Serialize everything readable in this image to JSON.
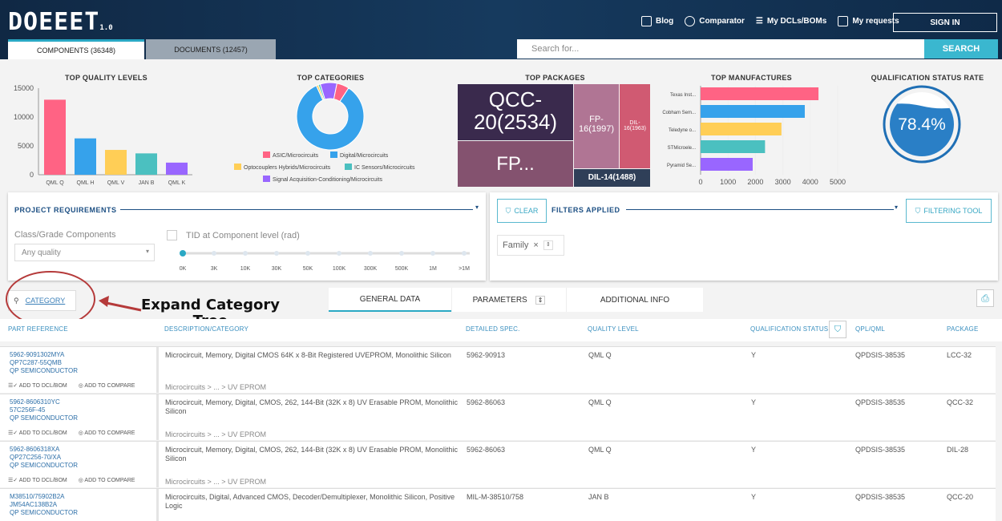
{
  "header": {
    "logo": "DOEEET",
    "version": "1.0",
    "nav": [
      {
        "label": "Blog",
        "icon": "blog-icon"
      },
      {
        "label": "Comparator",
        "icon": "compare-icon"
      },
      {
        "label": "My DCLs/BOMs",
        "icon": "list-icon"
      },
      {
        "label": "My requests",
        "icon": "document-icon"
      }
    ],
    "signin": "SIGN IN",
    "tabs": [
      {
        "label": "COMPONENTS (36348)",
        "active": true
      },
      {
        "label": "DOCUMENTS (12457)",
        "active": false
      }
    ],
    "search_placeholder": "Search for...",
    "search_button": "SEARCH"
  },
  "charts": {
    "quality": {
      "title": "TOP QUALITY LEVELS",
      "yticks": [
        "15000",
        "10000",
        "5000",
        "0"
      ]
    },
    "categories": {
      "title": "TOP CATEGORIES"
    },
    "packages": {
      "title": "TOP PACKAGES"
    },
    "manufactures": {
      "title": "TOP MANUFACTURES",
      "xticks": [
        "0",
        "1000",
        "2000",
        "3000",
        "4000",
        "5000"
      ]
    },
    "qualification": {
      "title": "QUALIFICATION STATUS RATE",
      "value": "78.4%",
      "fraction": 0.784
    }
  },
  "chart_data": [
    {
      "type": "bar",
      "title": "TOP QUALITY LEVELS",
      "categories": [
        "QML Q",
        "QML H",
        "QML V",
        "JAN B",
        "QML K"
      ],
      "values": [
        13000,
        6300,
        4300,
        3700,
        2100
      ],
      "ylim": [
        0,
        15000
      ],
      "colors": [
        "#ff6384",
        "#36a2eb",
        "#ffce56",
        "#4bc0c0",
        "#9966ff"
      ]
    },
    {
      "type": "pie",
      "title": "TOP CATEGORIES",
      "categories": [
        "ASIC/Microcircuits",
        "Digital/Microcircuits",
        "Optocouplers Hybrids/Microcircuits",
        "IC Sensors/Microcircuits",
        "Signal Acquisition-Conditioning/Microcircuits"
      ],
      "values": [
        6,
        84,
        1,
        1,
        8
      ],
      "colors": [
        "#ff6384",
        "#36a2eb",
        "#ffce56",
        "#4bc0c0",
        "#9966ff"
      ]
    },
    {
      "type": "treemap",
      "title": "TOP PACKAGES",
      "labels": [
        "QCC-20(2534)",
        "FP...",
        "FP-16(1997)",
        "DIL-16(1963)",
        "DIL-14(1488)"
      ]
    },
    {
      "type": "bar",
      "orientation": "horizontal",
      "title": "TOP MANUFACTURES",
      "categories": [
        "Texas Inst...",
        "Cobham Sem...",
        "Teledyne o...",
        "STMicroele...",
        "Pyramid Se..."
      ],
      "values": [
        4300,
        3800,
        2950,
        2350,
        1900
      ],
      "xlim": [
        0,
        5000
      ],
      "colors": [
        "#ff6384",
        "#36a2eb",
        "#ffce56",
        "#4bc0c0",
        "#9966ff"
      ]
    }
  ],
  "project": {
    "title": "PROJECT REQUIREMENTS",
    "class_label": "Class/Grade Components",
    "class_value": "Any quality",
    "tid_label": "TID at Component level (rad)",
    "tid_ticks": [
      "0K",
      "3K",
      "10K",
      "30K",
      "50K",
      "100K",
      "300K",
      "500K",
      "1M",
      ">1M"
    ]
  },
  "filters": {
    "clear": "CLEAR",
    "title": "FILTERS APPLIED",
    "tool": "FILTERING TOOL",
    "chip": "Family"
  },
  "toolbar": {
    "category": "CATEGORY",
    "tabs": [
      "GENERAL DATA",
      "PARAMETERS",
      "ADDITIONAL INFO"
    ]
  },
  "annotation": {
    "line1": "Expand Category",
    "line2": "Tree"
  },
  "table": {
    "columns": [
      "PART REFERENCE",
      "DESCRIPTION/CATEGORY",
      "DETAILED SPEC.",
      "QUALITY LEVEL",
      "QUALIFICATION STATUS",
      "QPL/QML",
      "PACKAGE"
    ],
    "actions": {
      "add_dcl": "ADD TO DCL/BOM",
      "add_compare": "ADD TO COMPARE"
    },
    "rows": [
      {
        "p1": "5962-9091302MYA",
        "p2": "QP7C287-55QMB",
        "mfr": "QP SEMICONDUCTOR",
        "desc": "Microcircuit, Memory, Digital CMOS 64K x 8-Bit Registered UVEPROM, Monolithic Silicon",
        "cat": "Microcircuits > ... > UV EPROM",
        "spec": "5962-90913",
        "ql": "QML Q",
        "qs": "Y",
        "qpl": "QPDSIS-38535",
        "pkg": "LCC-32"
      },
      {
        "p1": "5962-8606310YC",
        "p2": "57C256F-45",
        "mfr": "QP SEMICONDUCTOR",
        "desc": "Microcircuit, Memory, Digital, CMOS, 262, 144-Bit (32K x 8) UV Erasable PROM, Monolithic Silicon",
        "cat": "Microcircuits > ... > UV EPROM",
        "spec": "5962-86063",
        "ql": "QML Q",
        "qs": "Y",
        "qpl": "QPDSIS-38535",
        "pkg": "QCC-32"
      },
      {
        "p1": "5962-8606318XA",
        "p2": "QP27C256-70/XA",
        "mfr": "QP SEMICONDUCTOR",
        "desc": "Microcircuit, Memory, Digital, CMOS, 262, 144-Bit (32K x 8) UV Erasable PROM, Monolithic Silicon",
        "cat": "Microcircuits > ... > UV EPROM",
        "spec": "5962-86063",
        "ql": "QML Q",
        "qs": "Y",
        "qpl": "QPDSIS-38535",
        "pkg": "DIL-28"
      },
      {
        "p1": "M38510/75902B2A",
        "p2": "JM54AC138B2A",
        "mfr": "QP SEMICONDUCTOR",
        "desc": "Microcircuits, Digital, Advanced CMOS, Decoder/Demultiplexer, Monolithic Silicon, Positive Logic",
        "cat": "",
        "spec": "MIL-M-38510/758",
        "ql": "JAN B",
        "qs": "Y",
        "qpl": "QPDSIS-38535",
        "pkg": "QCC-20"
      }
    ]
  }
}
